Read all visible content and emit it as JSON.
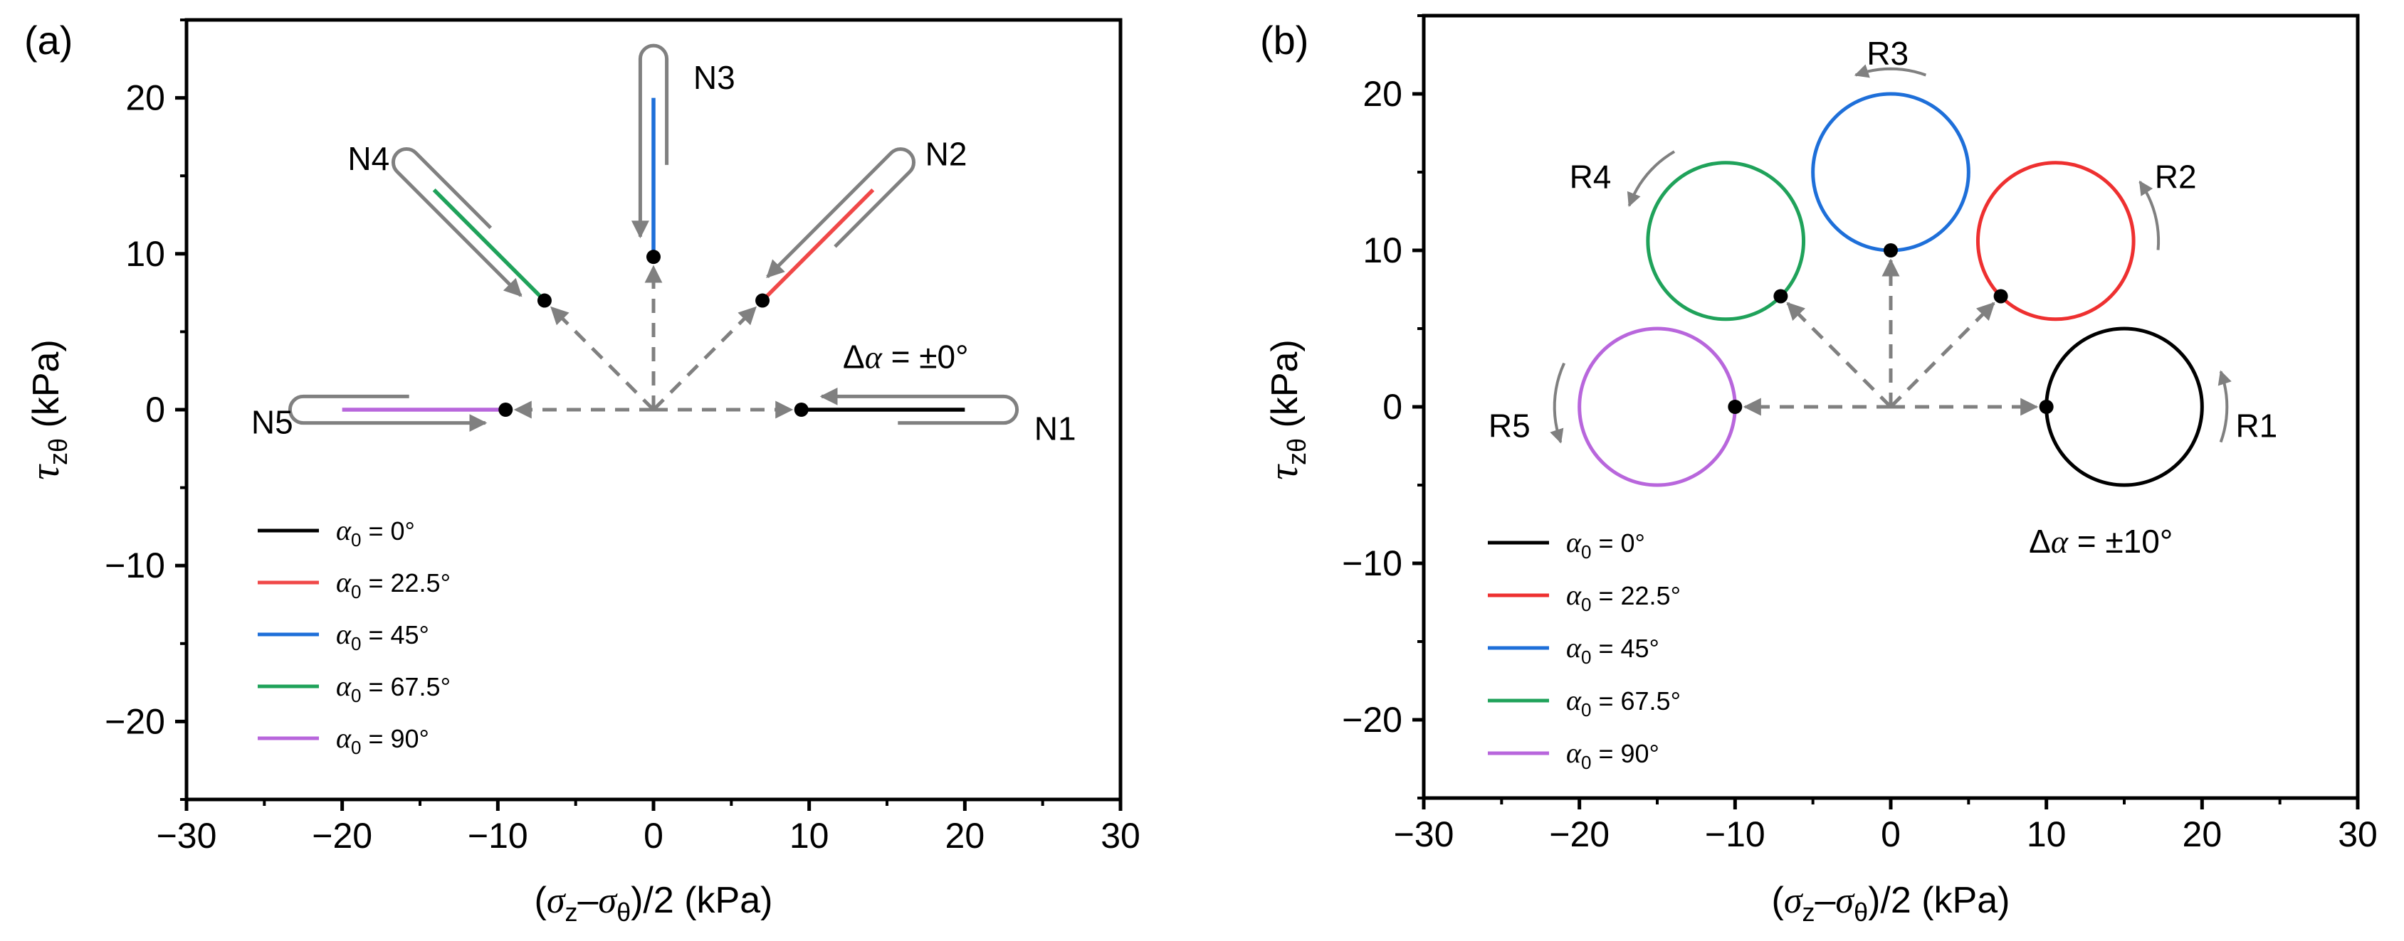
{
  "chart_data": [
    {
      "panel": "(a)",
      "type": "line",
      "xlim": [
        -30,
        30
      ],
      "ylim": [
        -25,
        25
      ],
      "xticks": [
        -30,
        -20,
        -10,
        0,
        10,
        20,
        30
      ],
      "yticks": [
        -20,
        -10,
        0,
        10,
        20
      ],
      "xlabel": {
        "paren_open": "(",
        "sigma1": "σ",
        "sub1": "z",
        "dash": "–",
        "sigma2": "σ",
        "sub2": "θ",
        "rest": ")/2 (kPa)"
      },
      "ylabel": {
        "tau": "τ",
        "sub": "zθ",
        "rest": " (kPa)"
      },
      "origin": [
        0,
        0
      ],
      "start_points": [
        [
          9.5,
          0
        ],
        [
          7,
          7
        ],
        [
          0,
          9.8
        ],
        [
          -7,
          7
        ],
        [
          -9.5,
          0
        ]
      ],
      "series": [
        {
          "name": "α0 = 0°",
          "alpha": "α",
          "sub": "0",
          "text": " = 0°",
          "color": "#000000",
          "x": [
            9.5,
            20
          ],
          "y": [
            0,
            0
          ]
        },
        {
          "name": "α0 = 22.5°",
          "alpha": "α",
          "sub": "0",
          "text": " = 22.5°",
          "color": "#F04848",
          "x": [
            7,
            14.1
          ],
          "y": [
            7,
            14.1
          ]
        },
        {
          "name": "α0 = 45°",
          "alpha": "α",
          "sub": "0",
          "text": " = 45°",
          "color": "#1E6FD9",
          "x": [
            0,
            0
          ],
          "y": [
            9.8,
            20
          ]
        },
        {
          "name": "α0 = 67.5°",
          "alpha": "α",
          "sub": "0",
          "text": " = 67.5°",
          "color": "#1FA25A",
          "x": [
            -7,
            -14.1
          ],
          "y": [
            7,
            14.1
          ]
        },
        {
          "name": "α0 = 90°",
          "alpha": "α",
          "sub": "0",
          "text": " = 90°",
          "color": "#B866DC",
          "x": [
            -9.5,
            -20
          ],
          "y": [
            0,
            0
          ]
        }
      ],
      "path_labels": [
        {
          "text": "N1",
          "x": 25.8,
          "y": -1.2
        },
        {
          "text": "N2",
          "x": 18.8,
          "y": 16.4
        },
        {
          "text": "N3",
          "x": 3.9,
          "y": 21.3
        },
        {
          "text": "N4",
          "x": -18.3,
          "y": 16.1
        },
        {
          "text": "N5",
          "x": -24.5,
          "y": -0.8
        }
      ],
      "annotation": {
        "delta": "Δ",
        "alpha": "α",
        "text": " = ±0°",
        "x": 16.2,
        "y": 3.4
      }
    },
    {
      "panel": "(b)",
      "type": "line",
      "xlim": [
        -30,
        30
      ],
      "ylim": [
        -25,
        25
      ],
      "xticks": [
        -30,
        -20,
        -10,
        0,
        10,
        20,
        30
      ],
      "yticks": [
        -20,
        -10,
        0,
        10,
        20
      ],
      "xlabel": {
        "paren_open": "(",
        "sigma1": "σ",
        "sub1": "z",
        "dash": "–",
        "sigma2": "σ",
        "sub2": "θ",
        "rest": ")/2 (kPa)"
      },
      "ylabel": {
        "tau": "τ",
        "sub": "zθ",
        "rest": " (kPa)"
      },
      "origin": [
        0,
        0
      ],
      "circle_radius": 5,
      "series": [
        {
          "name": "α0 = 0°",
          "alpha": "α",
          "sub": "0",
          "text": " = 0°",
          "color": "#000000",
          "center": [
            15,
            0
          ],
          "start": [
            10,
            0
          ]
        },
        {
          "name": "α0 = 22.5°",
          "alpha": "α",
          "sub": "0",
          "text": " = 22.5°",
          "color": "#EE3030",
          "center": [
            10.6,
            10.6
          ],
          "start": [
            7.07,
            7.07
          ]
        },
        {
          "name": "α0 = 45°",
          "alpha": "α",
          "sub": "0",
          "text": " = 45°",
          "color": "#1E6FD9",
          "center": [
            0,
            15
          ],
          "start": [
            0,
            10
          ]
        },
        {
          "name": "α0 = 67.5°",
          "alpha": "α",
          "sub": "0",
          "text": " = 67.5°",
          "color": "#1FA25A",
          "center": [
            -10.6,
            10.6
          ],
          "start": [
            -7.07,
            7.07
          ]
        },
        {
          "name": "α0 = 90°",
          "alpha": "α",
          "sub": "0",
          "text": " = 90°",
          "color": "#B866DC",
          "center": [
            -15,
            0
          ],
          "start": [
            -10,
            0
          ]
        }
      ],
      "path_labels": [
        {
          "text": "R1",
          "x": 23.5,
          "y": -1.2
        },
        {
          "text": "R2",
          "x": 18.3,
          "y": 14.7
        },
        {
          "text": "R3",
          "x": -0.2,
          "y": 22.6
        },
        {
          "text": "R4",
          "x": -19.3,
          "y": 14.7
        },
        {
          "text": "R5",
          "x": -24.5,
          "y": -1.2
        }
      ],
      "annotation": {
        "delta": "Δ",
        "alpha": "α",
        "text": " = ±10°",
        "x": 13.5,
        "y": -8.6
      }
    }
  ]
}
